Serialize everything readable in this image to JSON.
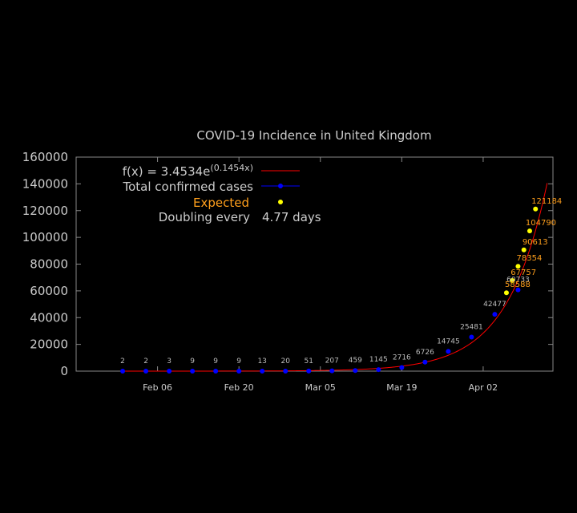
{
  "chart_data": {
    "type": "scatter",
    "title": "COVID-19 Incidence in United Kingdom",
    "x_axis": {
      "type": "date",
      "range": [
        "2020-01-23",
        "2020-04-14"
      ],
      "ticks": [
        {
          "date": "2020-02-06",
          "label": "Feb 06"
        },
        {
          "date": "2020-02-20",
          "label": "Feb 20"
        },
        {
          "date": "2020-03-05",
          "label": "Mar 05"
        },
        {
          "date": "2020-03-19",
          "label": "Mar 19"
        },
        {
          "date": "2020-04-02",
          "label": "Apr 02"
        }
      ]
    },
    "y_axis": {
      "range": [
        0,
        160000
      ],
      "ticks": [
        0,
        20000,
        40000,
        60000,
        80000,
        100000,
        120000,
        140000,
        160000
      ]
    },
    "legend": {
      "placement": "top-left",
      "fit_label": "f(x) = 3.4534e",
      "fit_exponent": "(0.1454x)",
      "confirmed_label": "Total confirmed cases",
      "expected_label": "Expected",
      "doubling_label": "Doubling every",
      "doubling_value": "4.77 days"
    },
    "fit": {
      "a": 3.4534,
      "b": 0.1454,
      "t0": "2020-01-31",
      "t_end": "2020-04-13"
    },
    "series": [
      {
        "name": "Total confirmed cases",
        "color": "#0000ff",
        "points": [
          {
            "x": "2020-01-31",
            "y": 2,
            "label": "2"
          },
          {
            "x": "2020-02-04",
            "y": 2,
            "label": "2"
          },
          {
            "x": "2020-02-08",
            "y": 3,
            "label": "3"
          },
          {
            "x": "2020-02-12",
            "y": 9,
            "label": "9"
          },
          {
            "x": "2020-02-16",
            "y": 9,
            "label": "9"
          },
          {
            "x": "2020-02-20",
            "y": 9,
            "label": "9"
          },
          {
            "x": "2020-02-24",
            "y": 13,
            "label": "13"
          },
          {
            "x": "2020-02-28",
            "y": 20,
            "label": "20"
          },
          {
            "x": "2020-03-03",
            "y": 51,
            "label": "51"
          },
          {
            "x": "2020-03-07",
            "y": 207,
            "label": "207"
          },
          {
            "x": "2020-03-11",
            "y": 459,
            "label": "459"
          },
          {
            "x": "2020-03-15",
            "y": 1145,
            "label": "1145"
          },
          {
            "x": "2020-03-19",
            "y": 2716,
            "label": "2716"
          },
          {
            "x": "2020-03-23",
            "y": 6726,
            "label": "6726"
          },
          {
            "x": "2020-03-27",
            "y": 14745,
            "label": "14745"
          },
          {
            "x": "2020-03-31",
            "y": 25481,
            "label": "25481"
          },
          {
            "x": "2020-04-04",
            "y": 42477,
            "label": "42477"
          },
          {
            "x": "2020-04-08",
            "y": 60733,
            "label": "60733"
          }
        ]
      },
      {
        "name": "Expected",
        "color": "#ffff00",
        "label_color": "#ff9f1c",
        "points": [
          {
            "x": "2020-04-06",
            "y": 58588,
            "label": "58588"
          },
          {
            "x": "2020-04-07",
            "y": 67757,
            "label": "67757"
          },
          {
            "x": "2020-04-08",
            "y": 78354,
            "label": "78354"
          },
          {
            "x": "2020-04-09",
            "y": 90613,
            "label": "90613"
          },
          {
            "x": "2020-04-10",
            "y": 104790,
            "label": "104790"
          },
          {
            "x": "2020-04-11",
            "y": 121184,
            "label": "121184"
          }
        ]
      }
    ],
    "fit_color": "#ff0000"
  }
}
